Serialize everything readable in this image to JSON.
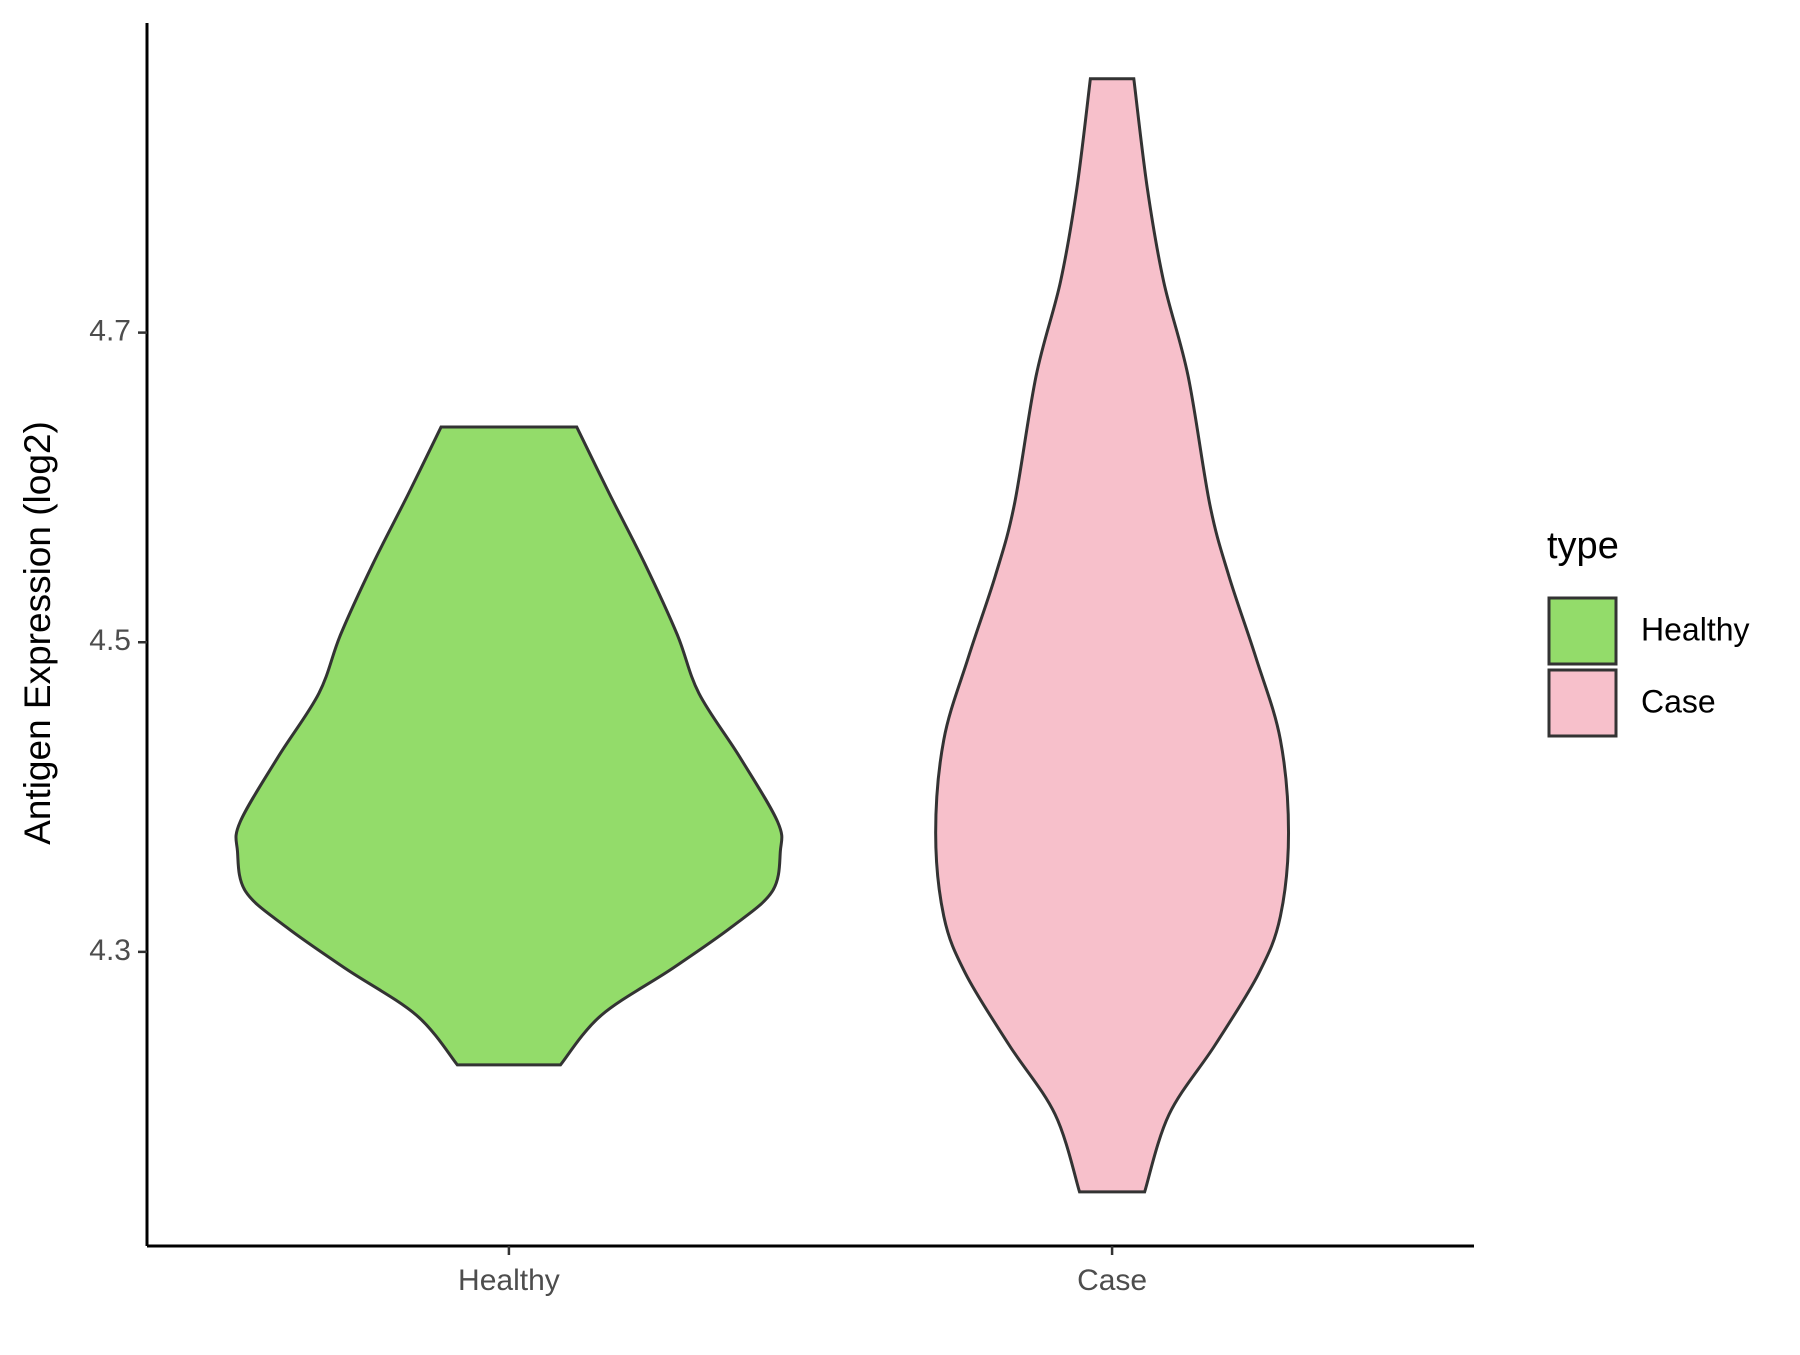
{
  "chart_data": {
    "type": "violin",
    "y_label": "Antigen Expression (log2)",
    "categories": [
      "Healthy",
      "Case"
    ],
    "ylim": [
      4.11,
      4.9
    ],
    "yticks": [
      4.3,
      4.5,
      4.7
    ],
    "legend_title": "type",
    "legend_position": "right",
    "series": [
      {
        "name": "Healthy",
        "color": "#93dc6a",
        "y": [
          4.639,
          4.596,
          4.551,
          4.505,
          4.467,
          4.426,
          4.384,
          4.365,
          4.339,
          4.316,
          4.289,
          4.259,
          4.227
        ],
        "width": [
          0.25,
          0.37,
          0.5,
          0.62,
          0.7,
          0.85,
          0.99,
          1.0,
          0.97,
          0.82,
          0.6,
          0.34,
          0.19
        ]
      },
      {
        "name": "Case",
        "color": "#f7c0cb",
        "y": [
          4.864,
          4.793,
          4.733,
          4.672,
          4.589,
          4.543,
          4.49,
          4.437,
          4.377,
          4.323,
          4.286,
          4.24,
          4.195,
          4.145
        ],
        "width": [
          0.08,
          0.13,
          0.19,
          0.28,
          0.36,
          0.43,
          0.53,
          0.62,
          0.65,
          0.62,
          0.54,
          0.38,
          0.21,
          0.12
        ]
      }
    ]
  }
}
